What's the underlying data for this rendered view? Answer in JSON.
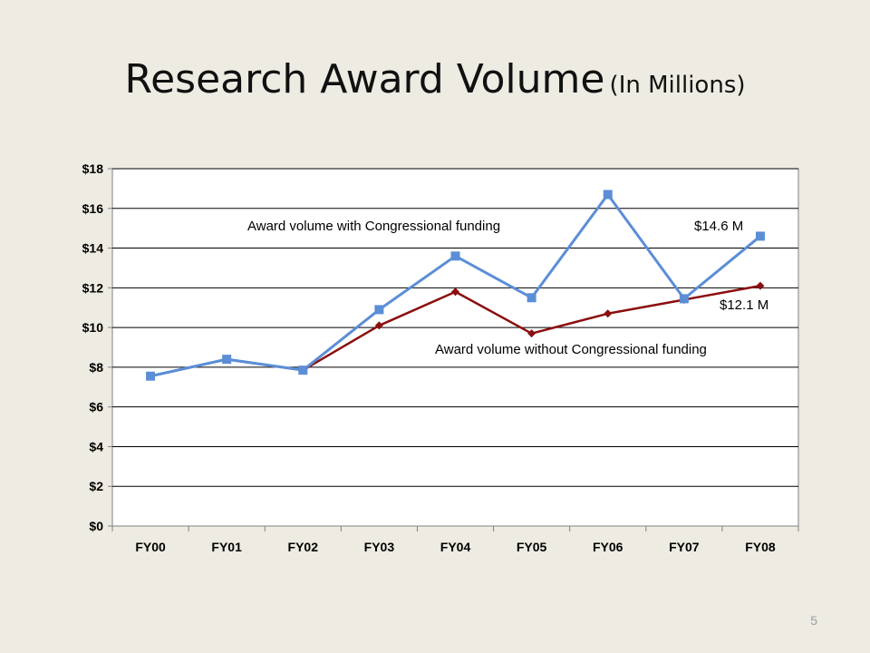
{
  "slide": {
    "title_main": "Research Award Volume",
    "title_sub": "(In Millions)",
    "page_number": "5"
  },
  "colors": {
    "background": "#eeebe2",
    "with_funding": "#5b8ed6",
    "without_funding": "#8b0e0e",
    "plot_background": "#ffffff",
    "gridline": "#000000"
  },
  "chart_data": {
    "type": "line",
    "categories": [
      "FY00",
      "FY01",
      "FY02",
      "FY03",
      "FY04",
      "FY05",
      "FY06",
      "FY07",
      "FY08"
    ],
    "ylim": [
      0,
      18
    ],
    "y_ticks": [
      0,
      2,
      4,
      6,
      8,
      10,
      12,
      14,
      16,
      18
    ],
    "y_tick_labels": [
      "$0",
      "$2",
      "$4",
      "$6",
      "$8",
      "$10",
      "$12",
      "$14",
      "$16",
      "$18"
    ],
    "grid": true,
    "legend": "none",
    "series": [
      {
        "name": "Award volume with Congressional funding",
        "marker": "square",
        "values": [
          7.55,
          8.4,
          7.85,
          10.9,
          13.6,
          11.5,
          16.7,
          11.45,
          14.6
        ]
      },
      {
        "name": "Award volume without Congressional funding",
        "marker": "diamond",
        "values": [
          7.55,
          8.4,
          7.85,
          10.1,
          11.8,
          9.7,
          10.7,
          11.4,
          12.1
        ]
      }
    ],
    "annotations": [
      {
        "text": "Award volume with Congressional funding"
      },
      {
        "text": "$14.6 M"
      },
      {
        "text": "$12.1 M"
      },
      {
        "text": "Award volume without Congressional funding"
      }
    ]
  }
}
